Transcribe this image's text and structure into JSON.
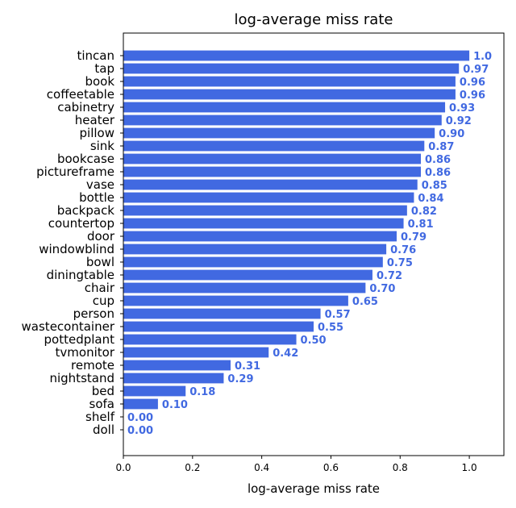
{
  "chart_data": {
    "type": "bar",
    "orientation": "horizontal",
    "title": "log-average miss rate",
    "xlabel": "log-average miss rate",
    "ylabel": "",
    "xlim": [
      0,
      1.1
    ],
    "xticks": [
      "0.0",
      "0.2",
      "0.4",
      "0.6",
      "0.8",
      "1.0"
    ],
    "grid": false,
    "bar_color": "#4169e1",
    "label_color": "#4169e1",
    "categories": [
      "tincan",
      "tap",
      "book",
      "coffeetable",
      "cabinetry",
      "heater",
      "pillow",
      "sink",
      "bookcase",
      "pictureframe",
      "vase",
      "bottle",
      "backpack",
      "countertop",
      "door",
      "windowblind",
      "bowl",
      "diningtable",
      "chair",
      "cup",
      "person",
      "wastecontainer",
      "pottedplant",
      "tvmonitor",
      "remote",
      "nightstand",
      "bed",
      "sofa",
      "shelf",
      "doll"
    ],
    "values": [
      1.0,
      0.97,
      0.96,
      0.96,
      0.93,
      0.92,
      0.9,
      0.87,
      0.86,
      0.86,
      0.85,
      0.84,
      0.82,
      0.81,
      0.79,
      0.76,
      0.75,
      0.72,
      0.7,
      0.65,
      0.57,
      0.55,
      0.5,
      0.42,
      0.31,
      0.29,
      0.18,
      0.1,
      0.0,
      0.0
    ],
    "value_labels": [
      "1.0",
      "0.97",
      "0.96",
      "0.96",
      "0.93",
      "0.92",
      "0.90",
      "0.87",
      "0.86",
      "0.86",
      "0.85",
      "0.84",
      "0.82",
      "0.81",
      "0.79",
      "0.76",
      "0.75",
      "0.72",
      "0.70",
      "0.65",
      "0.57",
      "0.55",
      "0.50",
      "0.42",
      "0.31",
      "0.29",
      "0.18",
      "0.10",
      "0.00",
      "0.00"
    ]
  }
}
